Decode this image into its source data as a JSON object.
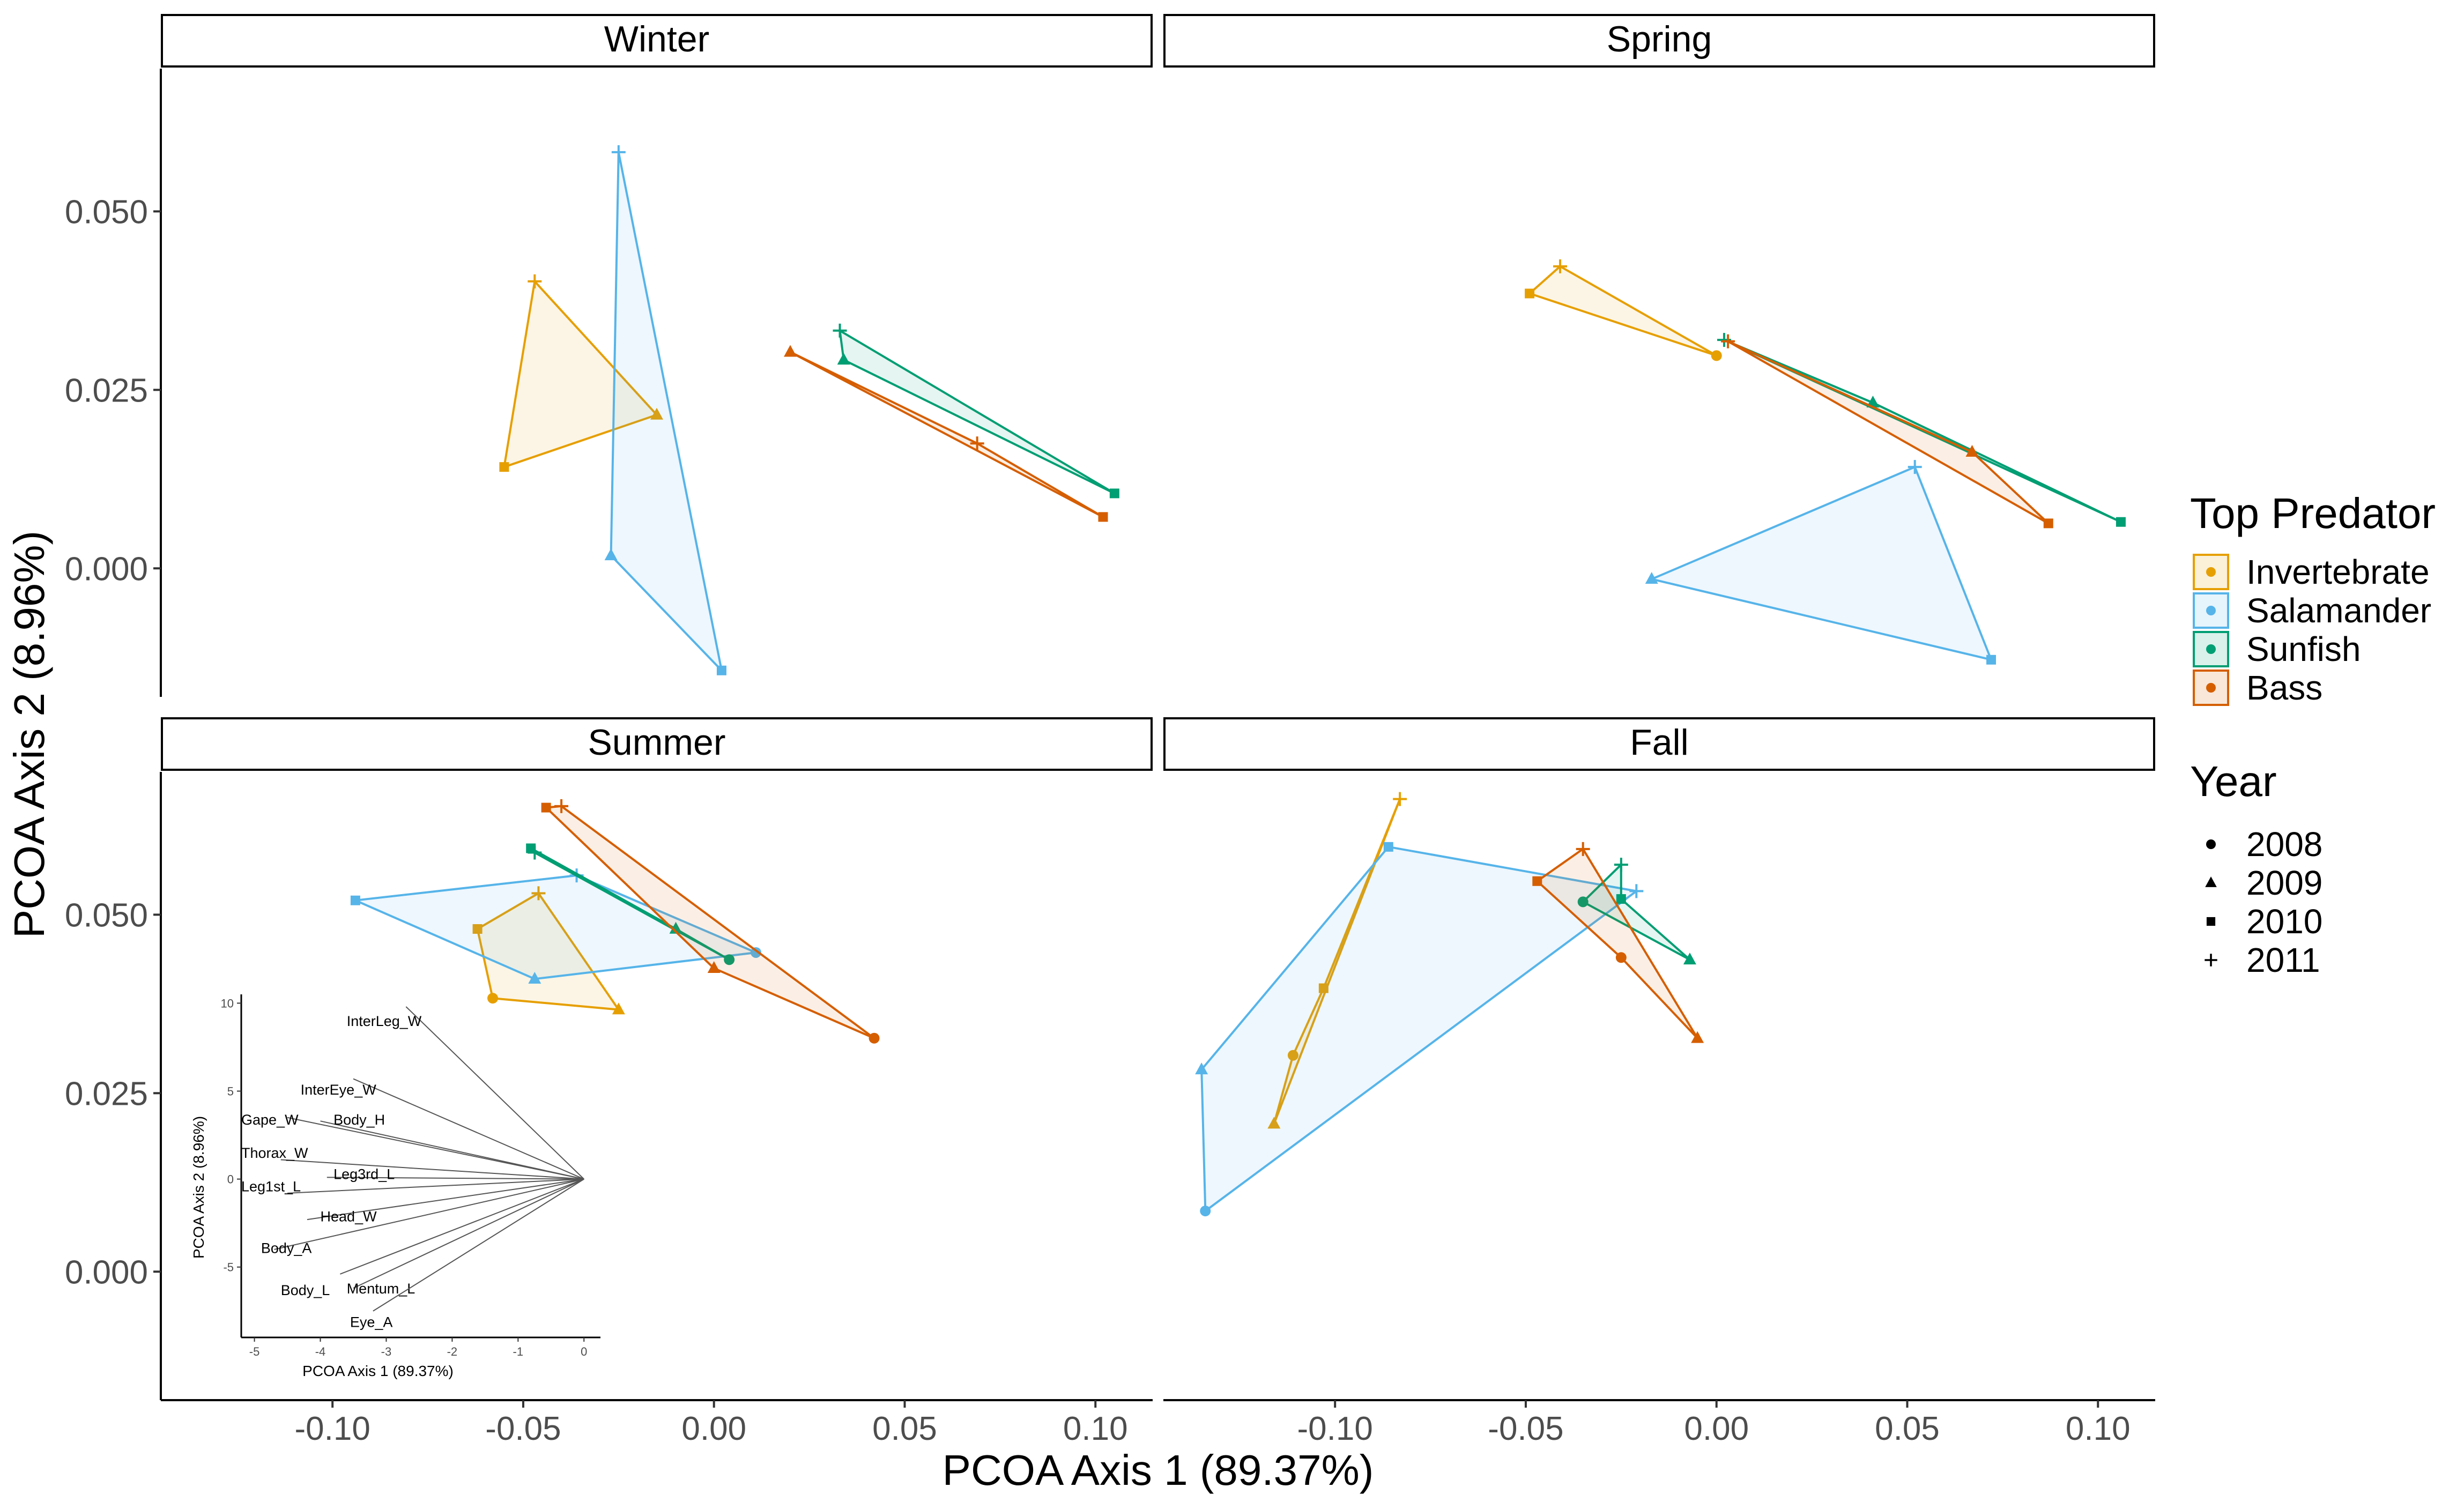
{
  "colors": {
    "Invertebrate": "#E69F00",
    "Salamander": "#56B4E9",
    "Sunfish": "#009E73",
    "Bass": "#D55E00"
  },
  "chart_data": {
    "type": "scatter",
    "facets": [
      "Winter",
      "Spring",
      "Summer",
      "Fall"
    ],
    "xlabel": "PCOA Axis 1 (89.37%)",
    "ylabel": "PCOA Axis 2 (8.96%)",
    "xlim": [
      -0.145,
      0.115
    ],
    "ylim": [
      -0.018,
      0.07
    ],
    "xticks": [
      -0.1,
      -0.05,
      0.0,
      0.05,
      0.1
    ],
    "xtick_labels": [
      "-0.10",
      "-0.05",
      "0.00",
      "0.05",
      "0.10"
    ],
    "yticks": [
      0.0,
      0.025,
      0.05
    ],
    "ytick_labels": [
      "0.000",
      "0.025",
      "0.050"
    ],
    "grid": false,
    "legend": {
      "placement": "right",
      "predator_title": "Top Predator",
      "predators": [
        "Invertebrate",
        "Salamander",
        "Sunfish",
        "Bass"
      ],
      "year_title": "Year",
      "years": [
        "2008",
        "2009",
        "2010",
        "2011"
      ]
    },
    "panels": [
      {
        "season": "Winter",
        "groups": [
          {
            "predator": "Invertebrate",
            "points": [
              {
                "year": "2009",
                "x": -0.015,
                "y": 0.0215
              },
              {
                "year": "2010",
                "x": -0.055,
                "y": 0.0142
              },
              {
                "year": "2011",
                "x": -0.047,
                "y": 0.0402
              }
            ],
            "hull": [
              [
                -0.047,
                0.0402
              ],
              [
                -0.055,
                0.0142
              ],
              [
                -0.015,
                0.0215
              ]
            ]
          },
          {
            "predator": "Salamander",
            "points": [
              {
                "year": "2009",
                "x": -0.027,
                "y": 0.0018
              },
              {
                "year": "2010",
                "x": 0.002,
                "y": -0.0143
              },
              {
                "year": "2011",
                "x": -0.025,
                "y": 0.0583
              }
            ],
            "hull": [
              [
                -0.025,
                0.0583
              ],
              [
                -0.027,
                0.0018
              ],
              [
                0.002,
                -0.0143
              ]
            ]
          },
          {
            "predator": "Sunfish",
            "points": [
              {
                "year": "2009",
                "x": 0.034,
                "y": 0.0292
              },
              {
                "year": "2010",
                "x": 0.105,
                "y": 0.0105
              },
              {
                "year": "2011",
                "x": 0.033,
                "y": 0.0333
              }
            ],
            "hull": [
              [
                0.033,
                0.0333
              ],
              [
                0.034,
                0.0292
              ],
              [
                0.105,
                0.0105
              ]
            ]
          },
          {
            "predator": "Bass",
            "points": [
              {
                "year": "2009",
                "x": 0.02,
                "y": 0.0303
              },
              {
                "year": "2010",
                "x": 0.102,
                "y": 0.0072
              },
              {
                "year": "2011",
                "x": 0.069,
                "y": 0.0175
              }
            ],
            "hull": [
              [
                0.02,
                0.0303
              ],
              [
                0.102,
                0.0072
              ],
              [
                0.069,
                0.0175
              ]
            ]
          }
        ]
      },
      {
        "season": "Spring",
        "groups": [
          {
            "predator": "Invertebrate",
            "points": [
              {
                "year": "2008",
                "x": 0.0,
                "y": 0.0298
              },
              {
                "year": "2010",
                "x": -0.049,
                "y": 0.0385
              },
              {
                "year": "2011",
                "x": -0.041,
                "y": 0.0423
              }
            ],
            "hull": [
              [
                -0.041,
                0.0423
              ],
              [
                -0.049,
                0.0385
              ],
              [
                0.0,
                0.0298
              ]
            ]
          },
          {
            "predator": "Salamander",
            "points": [
              {
                "year": "2009",
                "x": -0.017,
                "y": -0.0015
              },
              {
                "year": "2010",
                "x": 0.072,
                "y": -0.0128
              },
              {
                "year": "2011",
                "x": 0.052,
                "y": 0.0142
              }
            ],
            "hull": [
              [
                0.052,
                0.0142
              ],
              [
                -0.017,
                -0.0015
              ],
              [
                0.072,
                -0.0128
              ]
            ]
          },
          {
            "predator": "Sunfish",
            "points": [
              {
                "year": "2009",
                "x": 0.041,
                "y": 0.0232
              },
              {
                "year": "2010",
                "x": 0.106,
                "y": 0.0065
              },
              {
                "year": "2011",
                "x": 0.002,
                "y": 0.032
              }
            ],
            "hull": [
              [
                0.002,
                0.032
              ],
              [
                0.041,
                0.0232
              ],
              [
                0.106,
                0.0065
              ]
            ]
          },
          {
            "predator": "Bass",
            "points": [
              {
                "year": "2009",
                "x": 0.067,
                "y": 0.0163
              },
              {
                "year": "2010",
                "x": 0.087,
                "y": 0.0063
              },
              {
                "year": "2011",
                "x": 0.003,
                "y": 0.0318
              }
            ],
            "hull": [
              [
                0.003,
                0.0318
              ],
              [
                0.067,
                0.0163
              ],
              [
                0.087,
                0.0063
              ]
            ]
          }
        ]
      },
      {
        "season": "Summer",
        "groups": [
          {
            "predator": "Invertebrate",
            "points": [
              {
                "year": "2008",
                "x": -0.058,
                "y": 0.0383
              },
              {
                "year": "2009",
                "x": -0.025,
                "y": 0.0367
              },
              {
                "year": "2010",
                "x": -0.062,
                "y": 0.048
              },
              {
                "year": "2011",
                "x": -0.046,
                "y": 0.053
              }
            ],
            "hull": [
              [
                -0.046,
                0.053
              ],
              [
                -0.062,
                0.048
              ],
              [
                -0.058,
                0.0383
              ],
              [
                -0.025,
                0.0367
              ]
            ]
          },
          {
            "predator": "Salamander",
            "points": [
              {
                "year": "2008",
                "x": 0.011,
                "y": 0.0447
              },
              {
                "year": "2009",
                "x": -0.047,
                "y": 0.041
              },
              {
                "year": "2010",
                "x": -0.094,
                "y": 0.052
              },
              {
                "year": "2011",
                "x": -0.036,
                "y": 0.0555
              }
            ],
            "hull": [
              [
                -0.094,
                0.052
              ],
              [
                -0.036,
                0.0555
              ],
              [
                0.011,
                0.0447
              ],
              [
                -0.047,
                0.041
              ]
            ]
          },
          {
            "predator": "Sunfish",
            "points": [
              {
                "year": "2008",
                "x": 0.004,
                "y": 0.0437
              },
              {
                "year": "2009",
                "x": -0.01,
                "y": 0.048
              },
              {
                "year": "2010",
                "x": -0.048,
                "y": 0.0593
              },
              {
                "year": "2011",
                "x": -0.047,
                "y": 0.0587
              }
            ],
            "hull": [
              [
                -0.048,
                0.0593
              ],
              [
                -0.01,
                0.048
              ],
              [
                0.004,
                0.0437
              ],
              [
                -0.047,
                0.0587
              ]
            ]
          },
          {
            "predator": "Bass",
            "points": [
              {
                "year": "2008",
                "x": 0.042,
                "y": 0.0327
              },
              {
                "year": "2009",
                "x": 0.0,
                "y": 0.0425
              },
              {
                "year": "2010",
                "x": -0.044,
                "y": 0.065
              },
              {
                "year": "2011",
                "x": -0.04,
                "y": 0.0652
              }
            ],
            "hull": [
              [
                -0.044,
                0.065
              ],
              [
                -0.04,
                0.0652
              ],
              [
                0.042,
                0.0327
              ],
              [
                0.0,
                0.0425
              ]
            ]
          }
        ]
      },
      {
        "season": "Fall",
        "groups": [
          {
            "predator": "Invertebrate",
            "points": [
              {
                "year": "2008",
                "x": -0.111,
                "y": 0.0303
              },
              {
                "year": "2009",
                "x": -0.116,
                "y": 0.0207
              },
              {
                "year": "2010",
                "x": -0.103,
                "y": 0.0397
              },
              {
                "year": "2011",
                "x": -0.083,
                "y": 0.0662
              }
            ],
            "hull": [
              [
                -0.083,
                0.0662
              ],
              [
                -0.116,
                0.0207
              ],
              [
                -0.111,
                0.0303
              ],
              [
                -0.103,
                0.0397
              ]
            ]
          },
          {
            "predator": "Salamander",
            "points": [
              {
                "year": "2008",
                "x": -0.134,
                "y": 0.0085
              },
              {
                "year": "2009",
                "x": -0.135,
                "y": 0.0283
              },
              {
                "year": "2010",
                "x": -0.086,
                "y": 0.0595
              },
              {
                "year": "2011",
                "x": -0.021,
                "y": 0.0533
              }
            ],
            "hull": [
              [
                -0.135,
                0.0283
              ],
              [
                -0.086,
                0.0595
              ],
              [
                -0.021,
                0.0533
              ],
              [
                -0.134,
                0.0085
              ]
            ]
          },
          {
            "predator": "Sunfish",
            "points": [
              {
                "year": "2008",
                "x": -0.035,
                "y": 0.0518
              },
              {
                "year": "2009",
                "x": -0.007,
                "y": 0.0437
              },
              {
                "year": "2010",
                "x": -0.025,
                "y": 0.0522
              },
              {
                "year": "2011",
                "x": -0.025,
                "y": 0.057
              }
            ],
            "hull": [
              [
                -0.025,
                0.057
              ],
              [
                -0.035,
                0.0518
              ],
              [
                -0.007,
                0.0437
              ],
              [
                -0.025,
                0.0522
              ]
            ]
          },
          {
            "predator": "Bass",
            "points": [
              {
                "year": "2008",
                "x": -0.025,
                "y": 0.044
              },
              {
                "year": "2009",
                "x": -0.005,
                "y": 0.0327
              },
              {
                "year": "2010",
                "x": -0.047,
                "y": 0.0547
              },
              {
                "year": "2011",
                "x": -0.035,
                "y": 0.0592
              }
            ],
            "hull": [
              [
                -0.047,
                0.0547
              ],
              [
                -0.035,
                0.0592
              ],
              [
                -0.005,
                0.0327
              ],
              [
                -0.025,
                0.044
              ]
            ]
          }
        ]
      }
    ],
    "inset": {
      "type": "biplot",
      "xlabel": "PCOA Axis 1 (89.37%)",
      "ylabel": "PCOA Axis 2 (8.96%)",
      "xlim": [
        -5.2,
        0.25
      ],
      "ylim": [
        -9,
        10.5
      ],
      "xticks": [
        -5,
        -4,
        -3,
        -2,
        -1,
        0
      ],
      "xtick_labels": [
        "-5",
        "-4",
        "-3",
        "-2",
        "-1",
        "0"
      ],
      "yticks": [
        -5,
        0,
        5,
        10
      ],
      "ytick_labels": [
        "-5",
        "0",
        "5",
        "10"
      ],
      "vectors": [
        {
          "name": "InterLeg_W",
          "x": -2.7,
          "y": 9.8,
          "lx": -3.6,
          "ly": 8.7
        },
        {
          "name": "InterEye_W",
          "x": -3.5,
          "y": 5.7,
          "lx": -4.3,
          "ly": 4.8
        },
        {
          "name": "Gape_W",
          "x": -4.5,
          "y": 3.5,
          "lx": -5.2,
          "ly": 3.1
        },
        {
          "name": "Body_H",
          "x": -4.0,
          "y": 3.3,
          "lx": -3.8,
          "ly": 3.1
        },
        {
          "name": "Thorax_W",
          "x": -4.6,
          "y": 1.1,
          "lx": -5.2,
          "ly": 1.2
        },
        {
          "name": "Leg3rd_L",
          "x": -3.9,
          "y": 0.1,
          "lx": -3.8,
          "ly": 0.0
        },
        {
          "name": "Leg1st_L",
          "x": -4.5,
          "y": -0.8,
          "lx": -5.2,
          "ly": -0.7
        },
        {
          "name": "Head_W",
          "x": -4.2,
          "y": -2.3,
          "lx": -4.0,
          "ly": -2.4
        },
        {
          "name": "Body_A",
          "x": -4.7,
          "y": -4.0,
          "lx": -4.9,
          "ly": -4.2
        },
        {
          "name": "Body_L",
          "x": -3.7,
          "y": -5.4,
          "lx": -4.6,
          "ly": -6.6
        },
        {
          "name": "Mentum_L",
          "x": -3.5,
          "y": -6.2,
          "lx": -3.6,
          "ly": -6.5
        },
        {
          "name": "Eye_A",
          "x": -3.2,
          "y": -7.5,
          "lx": -3.55,
          "ly": -8.4
        }
      ]
    }
  }
}
